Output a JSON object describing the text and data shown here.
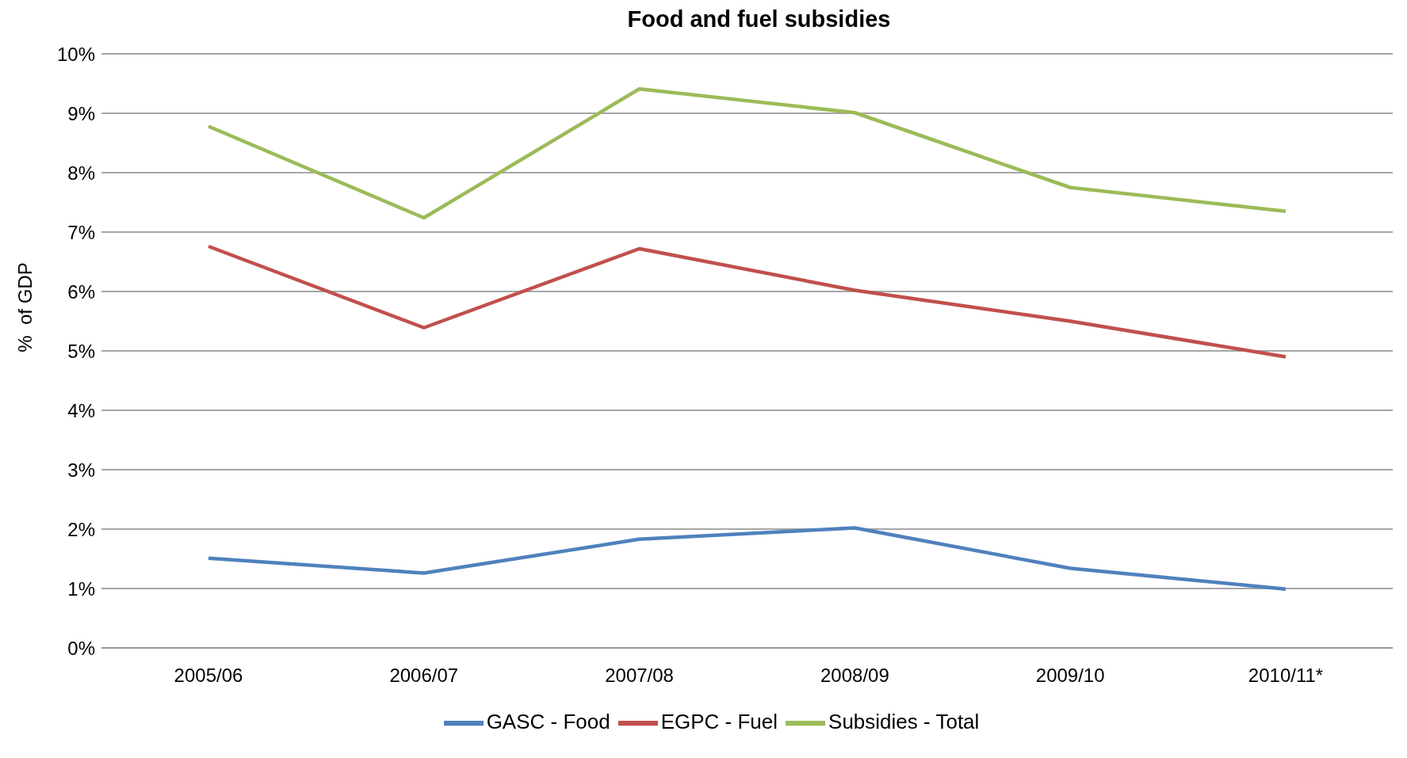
{
  "chart_data": {
    "type": "line",
    "title": "Food and fuel subsidies",
    "ylabel": "%  of GDP",
    "categories": [
      "2005/06",
      "2006/07",
      "2007/08",
      "2008/09",
      "2009/10",
      "2010/11*"
    ],
    "series": [
      {
        "name": "GASC - Food",
        "color": "#4f81bd",
        "values": [
          1.51,
          1.26,
          1.83,
          2.02,
          1.34,
          0.99
        ]
      },
      {
        "name": "EGPC - Fuel",
        "color": "#c0504d",
        "values": [
          6.76,
          5.39,
          6.72,
          6.02,
          5.5,
          4.9
        ]
      },
      {
        "name": "Subsidies - Total",
        "color": "#9bbb59",
        "values": [
          8.78,
          7.24,
          9.41,
          9.01,
          7.75,
          7.35
        ]
      }
    ],
    "ylim": [
      0,
      10
    ],
    "yticks": [
      {
        "value": 0,
        "label": "0%"
      },
      {
        "value": 1,
        "label": "1%"
      },
      {
        "value": 2,
        "label": "2%"
      },
      {
        "value": 3,
        "label": "3%"
      },
      {
        "value": 4,
        "label": "4%"
      },
      {
        "value": 5,
        "label": "5%"
      },
      {
        "value": 6,
        "label": "6%"
      },
      {
        "value": 7,
        "label": "7%"
      },
      {
        "value": 8,
        "label": "8%"
      },
      {
        "value": 9,
        "label": "9%"
      },
      {
        "value": 10,
        "label": "10%"
      }
    ],
    "grid": "y",
    "legend": "bottom",
    "marker": "none",
    "line_style": "solid"
  }
}
